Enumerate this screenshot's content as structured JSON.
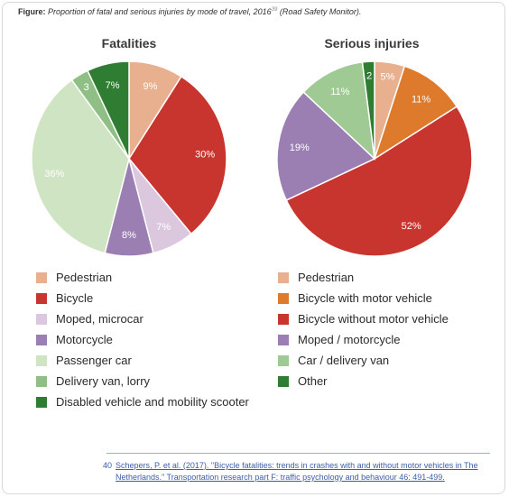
{
  "figure": {
    "label": "Figure:",
    "caption": "Proportion of fatal and serious injuries by mode of travel, 2016",
    "caption_ref": "39",
    "caption_source": "(Road Safety Monitor)."
  },
  "chart_data": [
    {
      "type": "pie",
      "title": "Fatalities",
      "slices": [
        {
          "name": "Pedestrian",
          "value": 9,
          "label": "9%",
          "color": "#e8b08f"
        },
        {
          "name": "Bicycle",
          "value": 30,
          "label": "30%",
          "color": "#c8352e"
        },
        {
          "name": "Moped, microcar",
          "value": 7,
          "label": "7%",
          "color": "#dcc8de"
        },
        {
          "name": "Motorcycle",
          "value": 8,
          "label": "8%",
          "color": "#9b7fb3"
        },
        {
          "name": "Passenger car",
          "value": 36,
          "label": "36%",
          "color": "#cfe4c3"
        },
        {
          "name": "Delivery van, lorry",
          "value": 3,
          "label": "3",
          "color": "#8fbf84"
        },
        {
          "name": "Disabled vehicle and mobility scooter",
          "value": 7,
          "label": "7%",
          "color": "#2e7d32"
        }
      ]
    },
    {
      "type": "pie",
      "title": "Serious injuries",
      "slices": [
        {
          "name": "Pedestrian",
          "value": 5,
          "label": "5%",
          "color": "#e8b08f"
        },
        {
          "name": "Bicycle with motor vehicle",
          "value": 11,
          "label": "11%",
          "color": "#de7a2c"
        },
        {
          "name": "Bicycle without motor vehicle",
          "value": 52,
          "label": "52%",
          "color": "#c8352e"
        },
        {
          "name": "Moped / motorcycle",
          "value": 19,
          "label": "19%",
          "color": "#9b7fb3"
        },
        {
          "name": "Car / delivery van",
          "value": 11,
          "label": "11%",
          "color": "#9fca94"
        },
        {
          "name": "Other",
          "value": 2,
          "label": "2",
          "color": "#2e7d32"
        }
      ]
    }
  ],
  "footnote": {
    "number": "40",
    "text": "Schepers, P. et al. (2017). \"Bicycle fatalities: trends in crashes with and without motor vehicles in The Netherlands.\" Transportation research part F: traffic psychology and behaviour 46: 491-499."
  }
}
